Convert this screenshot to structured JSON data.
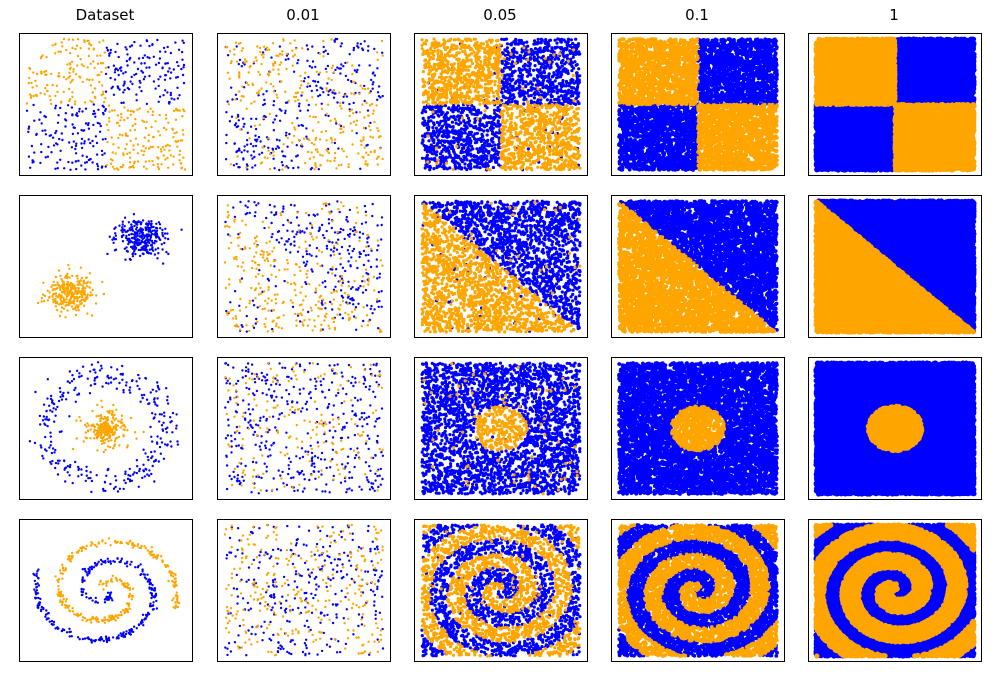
{
  "figure": {
    "column_titles": [
      "Dataset",
      "0.01",
      "0.05",
      "0.1",
      "1"
    ]
  },
  "colors": {
    "class_a": "#0000ff",
    "class_b": "#ffa500",
    "frame": "#000000"
  },
  "chart_data": {
    "type": "scatter",
    "layout": "4x5 grid of scatter panels, no tick marks or tick labels",
    "rows": [
      {
        "dataset": "checkerboard",
        "pattern": "2x2 checkerboard: top-left and bottom-right orange, top-right and bottom-left blue",
        "x_range": [
          0,
          1
        ],
        "y_range": [
          0,
          1
        ]
      },
      {
        "dataset": "two blobs",
        "pattern": "orange cluster near (0.3,0.3), blue cluster near (0.7,0.7); boundary is a diagonal",
        "x_range": [
          0,
          1
        ],
        "y_range": [
          0,
          1
        ]
      },
      {
        "dataset": "circles",
        "pattern": "orange inner disk of radius ~0.18, blue outer ring of radius ~0.4",
        "x_range": [
          0,
          1
        ],
        "y_range": [
          0,
          1
        ]
      },
      {
        "dataset": "spirals",
        "pattern": "two interleaved spiral arms, one orange and one blue",
        "x_range": [
          0,
          1
        ],
        "y_range": [
          0,
          1
        ]
      }
    ],
    "columns": [
      {
        "title": "Dataset",
        "points": 600
      },
      {
        "title": "0.01",
        "points": 600
      },
      {
        "title": "0.05",
        "points": 3000
      },
      {
        "title": "0.1",
        "points": 6000
      },
      {
        "title": "1",
        "points": 16000
      }
    ]
  }
}
